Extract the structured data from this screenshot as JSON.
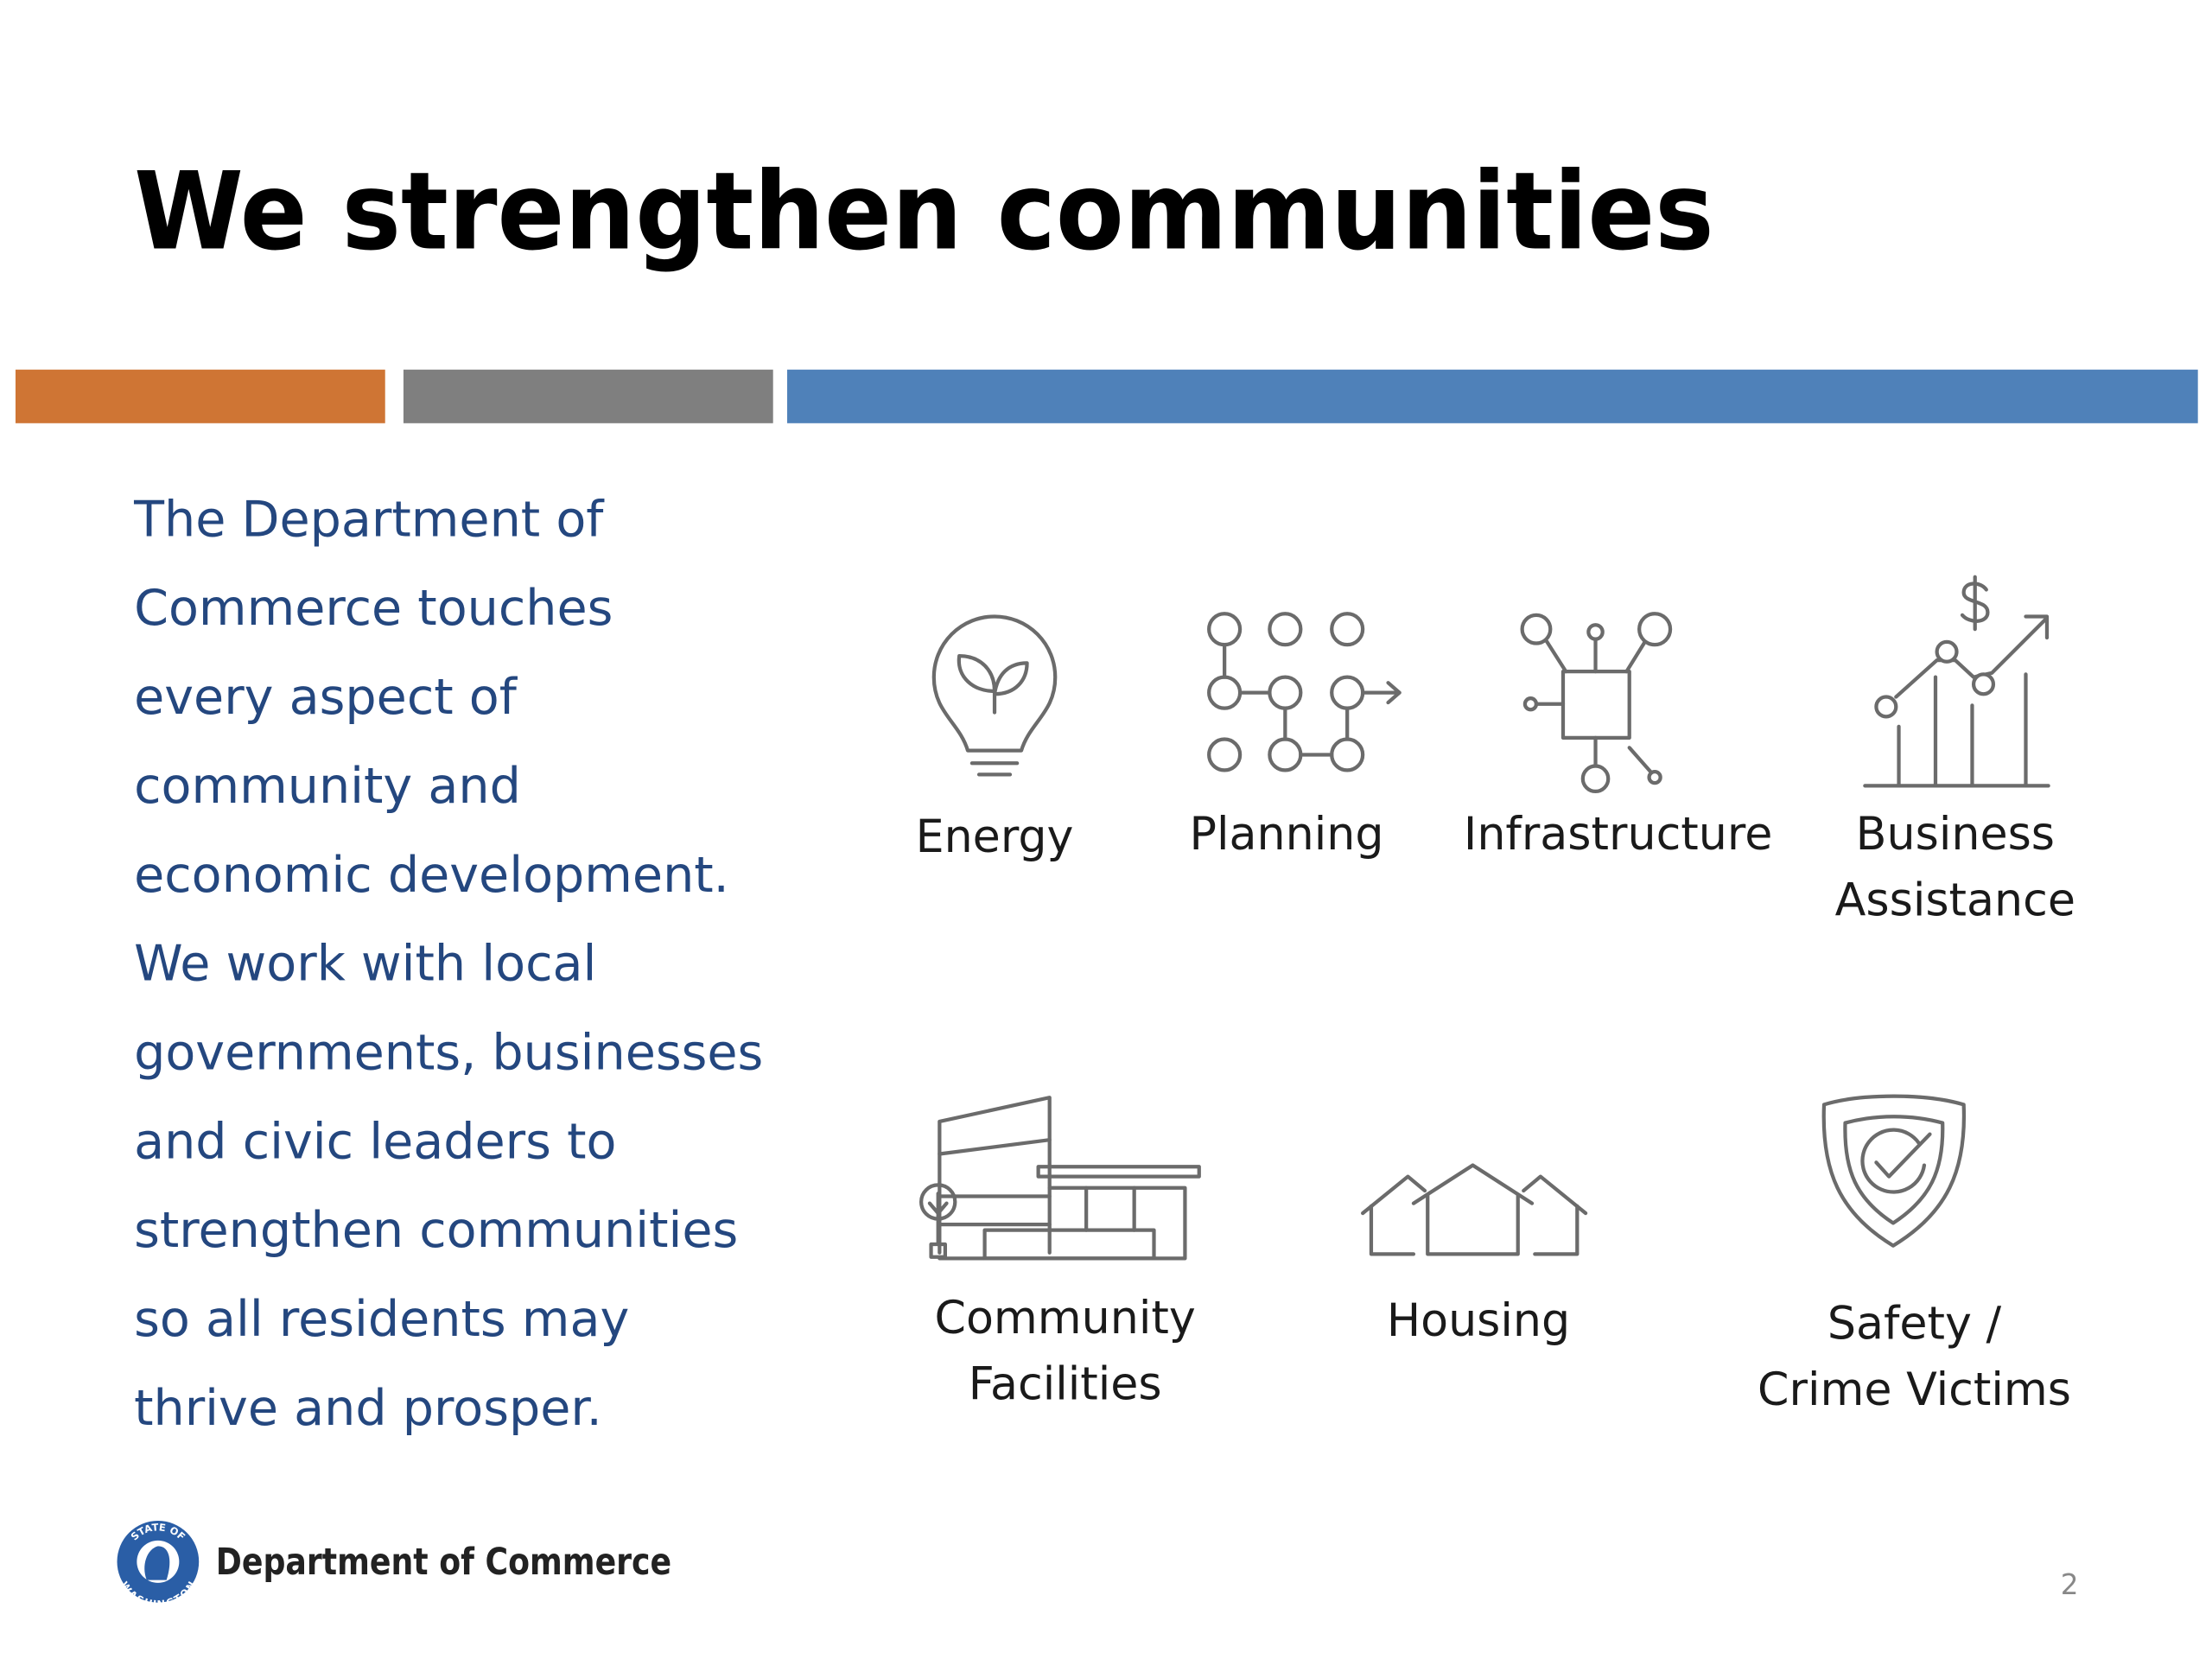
{
  "header": {
    "title": "We strengthen communities"
  },
  "body": {
    "lines": [
      "The Department of",
      "Commerce touches",
      "every aspect of",
      "community and",
      "economic development.",
      "We work with local",
      "governments, businesses",
      "and civic leaders to",
      "strengthen communities",
      "so all residents may",
      "thrive and prosper."
    ]
  },
  "items": [
    {
      "label": [
        "Energy"
      ]
    },
    {
      "label": [
        "Planning"
      ]
    },
    {
      "label": [
        "Infrastructure"
      ]
    },
    {
      "label": [
        "Business",
        "Assistance"
      ]
    },
    {
      "label": [
        "Community",
        "Facilities"
      ]
    },
    {
      "label": [
        "Housing"
      ]
    },
    {
      "label": [
        "Safety /",
        "Crime Victims"
      ]
    }
  ],
  "footer": {
    "seal_top": "STATE OF",
    "seal_bottom": "WASHINGTON",
    "organization": "Department of Commerce",
    "page_number": "2"
  }
}
